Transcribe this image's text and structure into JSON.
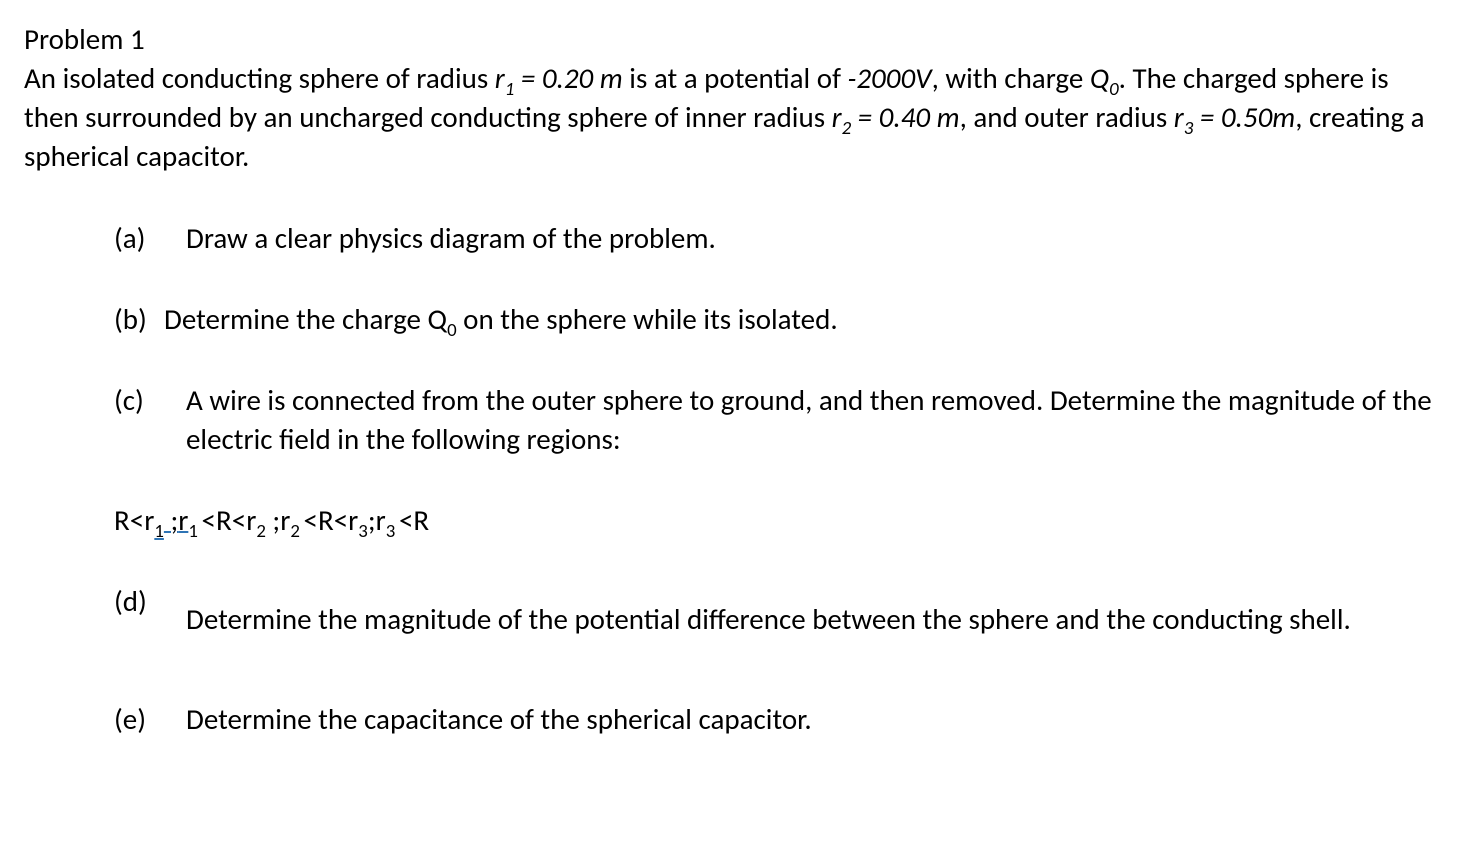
{
  "problem_title": "Problem 1",
  "intro": {
    "seg1": "An isolated conducting sphere of radius ",
    "r1_label": "r",
    "r1_sub": "1",
    "r1_eq": " = 0.20 m",
    "seg2": " is at a potential of ",
    "potential": "-2000V",
    "seg3": ", with charge ",
    "q_label": "Q",
    "q_sub": "0",
    "seg4": ". The charged sphere is then surrounded by an uncharged conducting sphere of inner radius ",
    "r2_label": "r",
    "r2_sub": "2",
    "r2_eq": " = 0.40 m",
    "seg5": ", and outer radius ",
    "r3_label": "r",
    "r3_sub": "3",
    "r3_eq": " = 0.50m",
    "seg6": ", creating a spherical capacitor."
  },
  "parts": {
    "a": {
      "label": "(a)",
      "text": "Draw a clear physics diagram of the problem."
    },
    "b": {
      "label": "(b)",
      "pre": "Determine the charge Q",
      "sub": "0",
      "post": " on the sphere while its isolated."
    },
    "c": {
      "label": "(c)",
      "text": "A wire is connected from the outer sphere to ground, and then removed. Determine the magnitude of the electric field in the following regions:"
    },
    "d": {
      "label": "(d)",
      "text": "Determine the magnitude of the potential difference between the sphere and the conducting shell."
    },
    "e": {
      "label": "(e)",
      "text": "Determine the capacitance of the spherical capacitor."
    }
  },
  "regions": {
    "R": "R",
    "lt": "<",
    "semi": ";",
    "sp_semi": " ;",
    "r": "r",
    "r1u": "r",
    "s1": "1",
    "s2": "2",
    "s3": "3"
  }
}
